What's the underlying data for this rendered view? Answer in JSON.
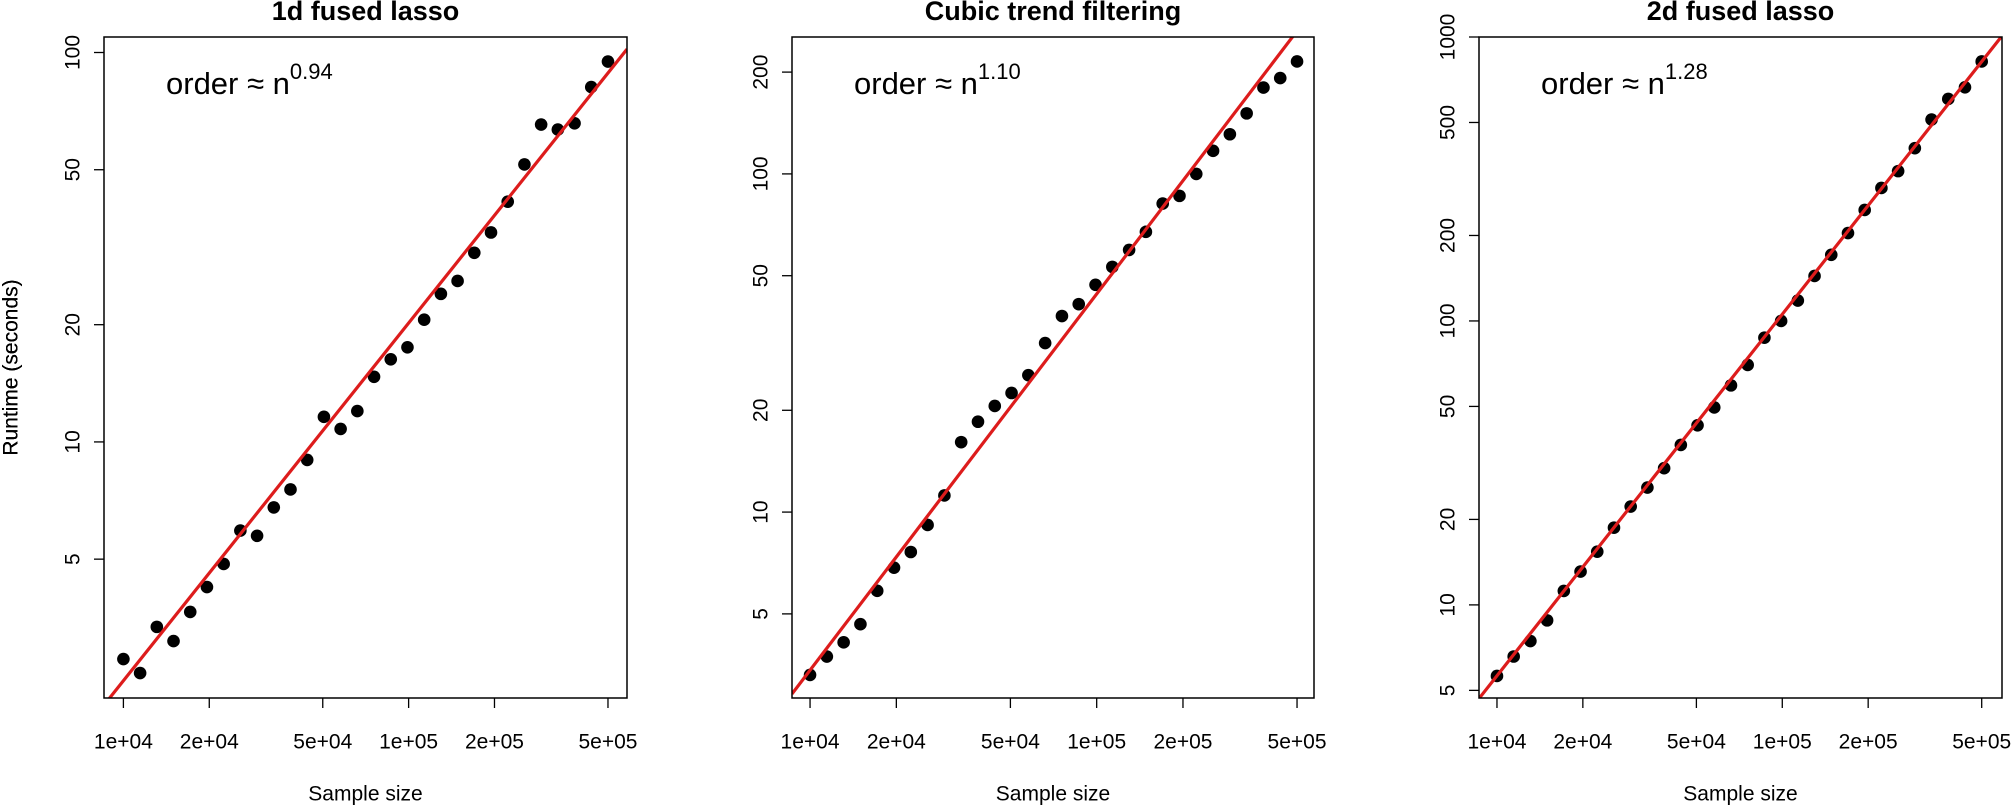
{
  "chart_data": [
    {
      "type": "scatter",
      "title": "1d fused lasso",
      "xlabel": "Sample size",
      "ylabel": "Runtime (seconds)",
      "annotation": "order ≈ n",
      "annotation_exponent": "0.94",
      "log_x": true,
      "log_y": true,
      "color": "#000000",
      "x": [
        10000,
        11444,
        13097,
        14988,
        17153,
        19630,
        22465,
        25710,
        29423,
        33672,
        38535,
        44100,
        50469,
        57758,
        66099,
        75645,
        86570,
        99072,
        113380,
        129755,
        148493,
        169938,
        194480,
        222566,
        254709,
        291493,
        333589,
        381765,
        436897,
        500000
      ],
      "y": [
        2.77,
        2.55,
        3.35,
        3.08,
        3.66,
        4.24,
        4.86,
        5.92,
        5.74,
        6.79,
        7.55,
        8.99,
        11.6,
        10.8,
        12.0,
        14.7,
        16.3,
        17.5,
        20.6,
        24.0,
        25.9,
        30.6,
        34.5,
        41.4,
        51.6,
        65.3,
        63.4,
        65.8,
        81.5,
        94.8
      ],
      "fit": {
        "color": "#dd1c1c",
        "x": [
          8550,
          583000
        ],
        "y": [
          2.11,
          102
        ]
      },
      "xlim": [
        8550,
        583000
      ],
      "ylim": [
        2.2,
        109.6
      ],
      "xticks": [
        {
          "value": 10000,
          "label": "1e+04"
        },
        {
          "value": 20000,
          "label": "2e+04"
        },
        {
          "value": 50000,
          "label": "5e+04"
        },
        {
          "value": 100000,
          "label": "1e+05"
        },
        {
          "value": 200000,
          "label": "2e+05"
        },
        {
          "value": 500000,
          "label": "5e+05"
        }
      ],
      "yticks": [
        5,
        10,
        20,
        50,
        100
      ]
    },
    {
      "type": "scatter",
      "title": "Cubic trend filtering",
      "xlabel": "Sample size",
      "ylabel": "Runtime (seconds)",
      "annotation": "order ≈ n",
      "annotation_exponent": "1.10",
      "log_x": true,
      "log_y": true,
      "color": "#000000",
      "x": [
        10000,
        11444,
        13097,
        14988,
        17153,
        19630,
        22465,
        25710,
        29423,
        33672,
        38535,
        44100,
        50469,
        57758,
        66099,
        75645,
        86570,
        99072,
        113380,
        129755,
        148493,
        169938,
        194480,
        222566,
        254709,
        291493,
        333589,
        381765,
        436897,
        500000
      ],
      "y": [
        3.3,
        3.74,
        4.12,
        4.66,
        5.85,
        6.85,
        7.62,
        9.16,
        11.2,
        16.1,
        18.5,
        20.6,
        22.5,
        25.4,
        31.6,
        38.0,
        41.2,
        47.0,
        53.1,
        59.6,
        67.4,
        81.7,
        86.1,
        100,
        117,
        131,
        151,
        180,
        192,
        215
      ],
      "fit": {
        "color": "#dd1c1c",
        "x": [
          8650,
          573000
        ],
        "y": [
          2.9,
          308
        ]
      },
      "xlim": [
        8650,
        573000
      ],
      "ylim": [
        2.82,
        254
      ],
      "xticks": [
        {
          "value": 10000,
          "label": "1e+04"
        },
        {
          "value": 20000,
          "label": "2e+04"
        },
        {
          "value": 50000,
          "label": "5e+04"
        },
        {
          "value": 100000,
          "label": "1e+05"
        },
        {
          "value": 200000,
          "label": "2e+05"
        },
        {
          "value": 500000,
          "label": "5e+05"
        }
      ],
      "yticks": [
        5,
        10,
        20,
        50,
        100,
        200
      ]
    },
    {
      "type": "scatter",
      "title": "2d fused lasso",
      "xlabel": "Sample size",
      "ylabel": "Runtime (seconds)",
      "annotation": "order ≈ n",
      "annotation_exponent": "1.28",
      "log_x": true,
      "log_y": true,
      "color": "#000000",
      "x": [
        10000,
        11444,
        13097,
        14988,
        17153,
        19630,
        22465,
        25710,
        29423,
        33672,
        38535,
        44100,
        50469,
        57758,
        66099,
        75645,
        86570,
        99072,
        113380,
        129755,
        148493,
        169938,
        194480,
        222566,
        254709,
        291493,
        333589,
        381765,
        436897,
        500000
      ],
      "y": [
        5.62,
        6.58,
        7.46,
        8.82,
        11.2,
        13.1,
        15.4,
        18.7,
        22.2,
        25.9,
        30.3,
        36.6,
        42.9,
        49.6,
        59.3,
        70.0,
        87.3,
        100,
        118,
        144,
        171,
        204,
        246,
        294,
        337,
        406,
        512,
        605,
        665,
        820
      ],
      "fit": {
        "color": "#dd1c1c",
        "x": [
          8650,
          589000
        ],
        "y": [
          4.68,
          1009
        ]
      },
      "xlim": [
        8650,
        589000
      ],
      "ylim": [
        4.7,
        1000
      ],
      "xticks": [
        {
          "value": 10000,
          "label": "1e+04"
        },
        {
          "value": 20000,
          "label": "2e+04"
        },
        {
          "value": 50000,
          "label": "5e+04"
        },
        {
          "value": 100000,
          "label": "1e+05"
        },
        {
          "value": 200000,
          "label": "2e+05"
        },
        {
          "value": 500000,
          "label": "5e+05"
        }
      ],
      "yticks": [
        5,
        10,
        20,
        50,
        100,
        200,
        500,
        1000
      ]
    }
  ]
}
